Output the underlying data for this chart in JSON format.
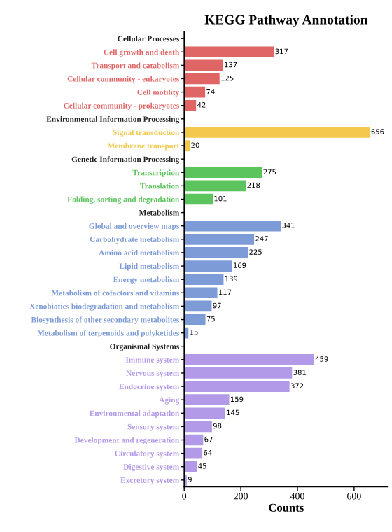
{
  "chart_data": {
    "type": "bar",
    "orientation": "horizontal",
    "title": "KEGG Pathway Annotation",
    "xlabel": "Counts",
    "categories": [
      "Cellular Processes",
      "Cell growth and death",
      "Transport and catabolism",
      "Cellular community - eukaryotes",
      "Cell motility",
      "Cellular community - prokaryotes",
      "Environmental Information Processing",
      "Signal transduction",
      "Membrane transport",
      "Genetic Information Processing",
      "Transcription",
      "Translation",
      "Folding, sorting and degradation",
      "Metabolism",
      "Global and overview maps",
      "Carbohydrate metabolism",
      "Amino acid metabolism",
      "Lipid metabolism",
      "Energy metabolism",
      "Metabolism of cofactors and vitamins",
      "Xenobiotics biodegradation and metabolism",
      "Biosynthesis of other secondary metabolites",
      "Metabolism of terpenoids and polyketides",
      "Organismal Systems",
      "Immune system",
      "Nervous system",
      "Endocrine system",
      "Aging",
      "Environmental adaptation",
      "Sensory system",
      "Development and regeneration",
      "Circulatory system",
      "Digestive system",
      "Excretory system"
    ],
    "values": [
      null,
      317,
      137,
      125,
      74,
      42,
      null,
      656,
      20,
      null,
      275,
      218,
      101,
      null,
      341,
      247,
      225,
      169,
      139,
      117,
      97,
      75,
      15,
      null,
      459,
      381,
      372,
      159,
      145,
      98,
      67,
      64,
      45,
      9
    ],
    "colors": [
      null,
      "#e06666",
      "#e06666",
      "#e06666",
      "#e06666",
      "#e06666",
      null,
      "#f2c94c",
      "#f2c94c",
      null,
      "#5cc45c",
      "#5cc45c",
      "#5cc45c",
      null,
      "#7d9bd6",
      "#7d9bd6",
      "#7d9bd6",
      "#7d9bd6",
      "#7d9bd6",
      "#7d9bd6",
      "#7d9bd6",
      "#7d9bd6",
      "#7d9bd6",
      null,
      "#b39ae8",
      "#b39ae8",
      "#b39ae8",
      "#b39ae8",
      "#b39ae8",
      "#b39ae8",
      "#b39ae8",
      "#b39ae8",
      "#b39ae8",
      "#b39ae8"
    ],
    "data_labels": true,
    "xlim": [
      0,
      720
    ],
    "xticks": [
      0,
      200,
      400,
      600
    ],
    "grid": false
  }
}
